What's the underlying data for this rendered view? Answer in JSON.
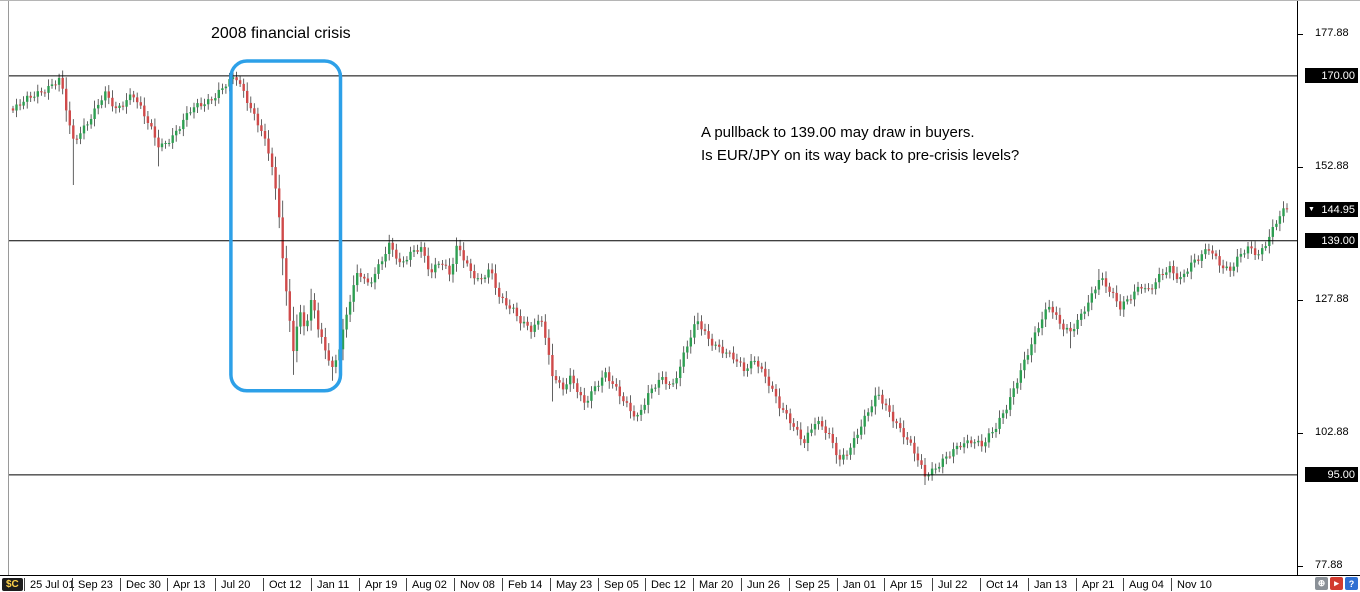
{
  "annotations": {
    "crisis_label": "2008 financial crisis",
    "note_line1": "A pullback to 139.00 may draw in buyers.",
    "note_line2": "Is EUR/JPY on its way back to pre-crisis levels?"
  },
  "price_axis": {
    "arrow_glyph": "▼",
    "ticks": [
      {
        "label": "177.88",
        "price": 177.88
      },
      {
        "label": "152.88",
        "price": 152.88
      },
      {
        "label": "127.88",
        "price": 127.88
      },
      {
        "label": "102.88",
        "price": 102.88
      },
      {
        "label": "77.88",
        "price": 77.88
      }
    ],
    "badges": [
      {
        "label": "170.00",
        "price": 170.0,
        "arrow": false
      },
      {
        "label": "144.95",
        "price": 144.95,
        "arrow": true
      },
      {
        "label": "139.00",
        "price": 139.0,
        "arrow": false
      },
      {
        "label": "95.00",
        "price": 95.0,
        "arrow": false
      }
    ]
  },
  "date_axis": {
    "labels": [
      "25 Jul 01",
      "Sep 23",
      "Dec 30",
      "Apr 13",
      "Jul 20",
      "Oct 12",
      "Jan 11",
      "Apr 19",
      "Aug 02",
      "Nov 08",
      "Feb 14",
      "May 23",
      "Sep 05",
      "Dec 12",
      "Mar 20",
      "Jun 26",
      "Sep 25",
      "Jan 01",
      "Apr 15",
      "Jul 22",
      "Oct 14",
      "Jan 13",
      "Apr 21",
      "Aug 04",
      "Nov 10"
    ]
  },
  "footer": {
    "logo_text": "$C",
    "icons": [
      {
        "name": "globe-icon",
        "glyph": "⊕",
        "bg": "#8a9097",
        "fg": "#ffffff"
      },
      {
        "name": "chart-shift-icon",
        "glyph": "▸",
        "bg": "#d23b2f",
        "fg": "#ffffff"
      },
      {
        "name": "help-icon",
        "glyph": "?",
        "bg": "#2f6fd2",
        "fg": "#ffffff"
      }
    ]
  },
  "chart_data": {
    "type": "candlestick",
    "title": "2008 financial crisis",
    "annotation_texts": [
      "2008 financial crisis",
      "A pullback to 139.00 may draw in buyers.",
      "Is EUR/JPY on its way back to pre-crisis levels?"
    ],
    "x_tick_labels": [
      "25 Jul 01",
      "Sep 23",
      "Dec 30",
      "Apr 13",
      "Jul 20",
      "Oct 12",
      "Jan 11",
      "Apr 19",
      "Aug 02",
      "Nov 08",
      "Feb 14",
      "May 23",
      "Sep 05",
      "Dec 12",
      "Mar 20",
      "Jun 26",
      "Sep 25",
      "Jan 01",
      "Apr 15",
      "Jul 22",
      "Oct 14",
      "Jan 13",
      "Apr 21",
      "Aug 04",
      "Nov 10"
    ],
    "y_tick_values": [
      177.88,
      152.88,
      127.88,
      102.88,
      77.88
    ],
    "ylim": [
      76.0,
      184.0
    ],
    "grid": false,
    "legend": "none",
    "key_levels": [
      170.0,
      139.0,
      95.0
    ],
    "last_price": 144.95,
    "candles_count": 360,
    "colors": {
      "up": "#2e9e52",
      "down": "#cf4a4a",
      "wick": "#3a3a3a",
      "level_line": "#000000",
      "box": "#2da0e8"
    },
    "crisis_box": {
      "t0": 0.171,
      "t1": 0.257,
      "price_top": 172.8,
      "price_bottom": 110.8
    },
    "price_path_waypoints": [
      [
        0.0,
        163.5
      ],
      [
        0.017,
        166.5
      ],
      [
        0.037,
        169.3
      ],
      [
        0.047,
        157.5
      ],
      [
        0.06,
        162.0
      ],
      [
        0.072,
        166.5
      ],
      [
        0.081,
        163.5
      ],
      [
        0.094,
        167.0
      ],
      [
        0.105,
        161.5
      ],
      [
        0.115,
        156.5
      ],
      [
        0.126,
        159.0
      ],
      [
        0.14,
        163.5
      ],
      [
        0.154,
        165.5
      ],
      [
        0.167,
        168.3
      ],
      [
        0.175,
        169.6
      ],
      [
        0.185,
        165.0
      ],
      [
        0.195,
        160.0
      ],
      [
        0.203,
        153.5
      ],
      [
        0.209,
        143.0
      ],
      [
        0.214,
        130.0
      ],
      [
        0.22,
        119.0
      ],
      [
        0.225,
        126.0
      ],
      [
        0.23,
        122.5
      ],
      [
        0.235,
        128.5
      ],
      [
        0.24,
        121.5
      ],
      [
        0.246,
        118.0
      ],
      [
        0.251,
        114.8
      ],
      [
        0.257,
        120.0
      ],
      [
        0.264,
        127.5
      ],
      [
        0.271,
        133.0
      ],
      [
        0.279,
        130.5
      ],
      [
        0.289,
        135.5
      ],
      [
        0.296,
        138.6
      ],
      [
        0.304,
        134.0
      ],
      [
        0.312,
        136.5
      ],
      [
        0.32,
        138.2
      ],
      [
        0.328,
        133.0
      ],
      [
        0.335,
        135.0
      ],
      [
        0.343,
        132.5
      ],
      [
        0.349,
        138.5
      ],
      [
        0.359,
        133.5
      ],
      [
        0.367,
        131.0
      ],
      [
        0.374,
        133.5
      ],
      [
        0.382,
        128.5
      ],
      [
        0.392,
        126.5
      ],
      [
        0.399,
        123.5
      ],
      [
        0.407,
        122.0
      ],
      [
        0.415,
        124.5
      ],
      [
        0.423,
        114.5
      ],
      [
        0.431,
        111.0
      ],
      [
        0.438,
        113.0
      ],
      [
        0.448,
        108.5
      ],
      [
        0.456,
        111.5
      ],
      [
        0.465,
        113.8
      ],
      [
        0.473,
        111.0
      ],
      [
        0.481,
        108.5
      ],
      [
        0.49,
        106.0
      ],
      [
        0.499,
        110.0
      ],
      [
        0.509,
        113.0
      ],
      [
        0.518,
        112.0
      ],
      [
        0.527,
        118.0
      ],
      [
        0.537,
        123.8
      ],
      [
        0.546,
        120.5
      ],
      [
        0.555,
        119.0
      ],
      [
        0.565,
        117.0
      ],
      [
        0.574,
        114.5
      ],
      [
        0.583,
        117.0
      ],
      [
        0.593,
        112.5
      ],
      [
        0.602,
        107.5
      ],
      [
        0.612,
        104.5
      ],
      [
        0.621,
        101.5
      ],
      [
        0.63,
        105.0
      ],
      [
        0.64,
        102.5
      ],
      [
        0.649,
        98.0
      ],
      [
        0.658,
        100.5
      ],
      [
        0.668,
        105.0
      ],
      [
        0.679,
        110.5
      ],
      [
        0.688,
        107.0
      ],
      [
        0.697,
        103.0
      ],
      [
        0.707,
        99.5
      ],
      [
        0.716,
        95.2
      ],
      [
        0.725,
        96.5
      ],
      [
        0.735,
        98.5
      ],
      [
        0.744,
        100.8
      ],
      [
        0.753,
        101.8
      ],
      [
        0.761,
        100.5
      ],
      [
        0.771,
        103.5
      ],
      [
        0.78,
        108.0
      ],
      [
        0.789,
        113.5
      ],
      [
        0.799,
        119.0
      ],
      [
        0.808,
        124.5
      ],
      [
        0.814,
        127.3
      ],
      [
        0.822,
        123.5
      ],
      [
        0.83,
        121.5
      ],
      [
        0.838,
        124.5
      ],
      [
        0.846,
        128.5
      ],
      [
        0.853,
        132.5
      ],
      [
        0.861,
        129.5
      ],
      [
        0.869,
        126.2
      ],
      [
        0.877,
        128.5
      ],
      [
        0.885,
        131.0
      ],
      [
        0.892,
        129.5
      ],
      [
        0.9,
        132.0
      ],
      [
        0.908,
        133.8
      ],
      [
        0.916,
        132.0
      ],
      [
        0.924,
        134.5
      ],
      [
        0.931,
        135.5
      ],
      [
        0.939,
        137.5
      ],
      [
        0.947,
        135.0
      ],
      [
        0.955,
        133.5
      ],
      [
        0.963,
        136.0
      ],
      [
        0.97,
        137.5
      ],
      [
        0.978,
        136.5
      ],
      [
        0.986,
        140.0
      ],
      [
        0.994,
        143.5
      ],
      [
        1.0,
        144.95
      ]
    ],
    "wick_low_extremes": [
      [
        0.047,
        149.5
      ],
      [
        0.115,
        153.0
      ],
      [
        0.22,
        113.8
      ],
      [
        0.251,
        112.7
      ],
      [
        0.423,
        108.8
      ],
      [
        0.448,
        107.2
      ],
      [
        0.49,
        105.3
      ],
      [
        0.621,
        100.6
      ],
      [
        0.649,
        96.6
      ],
      [
        0.716,
        94.1
      ],
      [
        0.83,
        118.8
      ],
      [
        0.869,
        125.0
      ]
    ],
    "wick_high_extremes": [
      [
        0.037,
        170.4
      ],
      [
        0.175,
        170.6
      ],
      [
        0.296,
        139.2
      ],
      [
        0.349,
        139.0
      ],
      [
        0.537,
        125.5
      ],
      [
        0.679,
        111.6
      ],
      [
        0.814,
        127.9
      ],
      [
        0.853,
        133.7
      ],
      [
        1.0,
        145.7
      ]
    ]
  }
}
